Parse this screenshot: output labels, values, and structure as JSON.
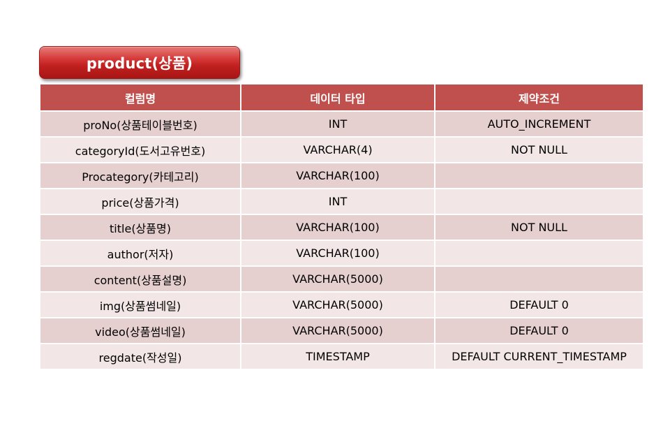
{
  "title": "product(상품)",
  "colors": {
    "header_bg": "#c0504d",
    "row_dark": "#e6cfcf",
    "row_light": "#f2e6e6",
    "title_button": "#c1201f"
  },
  "table": {
    "headers": [
      "컬럼명",
      "데이터 타입",
      "제약조건"
    ],
    "rows": [
      [
        "proNo(상품테이블번호)",
        "INT",
        "AUTO_INCREMENT"
      ],
      [
        "categoryId(도서고유번호)",
        "VARCHAR(4)",
        "NOT NULL"
      ],
      [
        "Procategory(카테고리)",
        "VARCHAR(100)",
        ""
      ],
      [
        "price(상품가격)",
        "INT",
        ""
      ],
      [
        "title(상품명)",
        "VARCHAR(100)",
        "NOT NULL"
      ],
      [
        "author(저자)",
        "VARCHAR(100)",
        ""
      ],
      [
        "content(상품설명)",
        "VARCHAR(5000)",
        ""
      ],
      [
        "img(상품썸네일)",
        "VARCHAR(5000)",
        "DEFAULT 0"
      ],
      [
        "video(상품썸네일)",
        "VARCHAR(5000)",
        "DEFAULT 0"
      ],
      [
        "regdate(작성일)",
        "TIMESTAMP",
        "DEFAULT CURRENT_TIMESTAMP"
      ]
    ]
  }
}
